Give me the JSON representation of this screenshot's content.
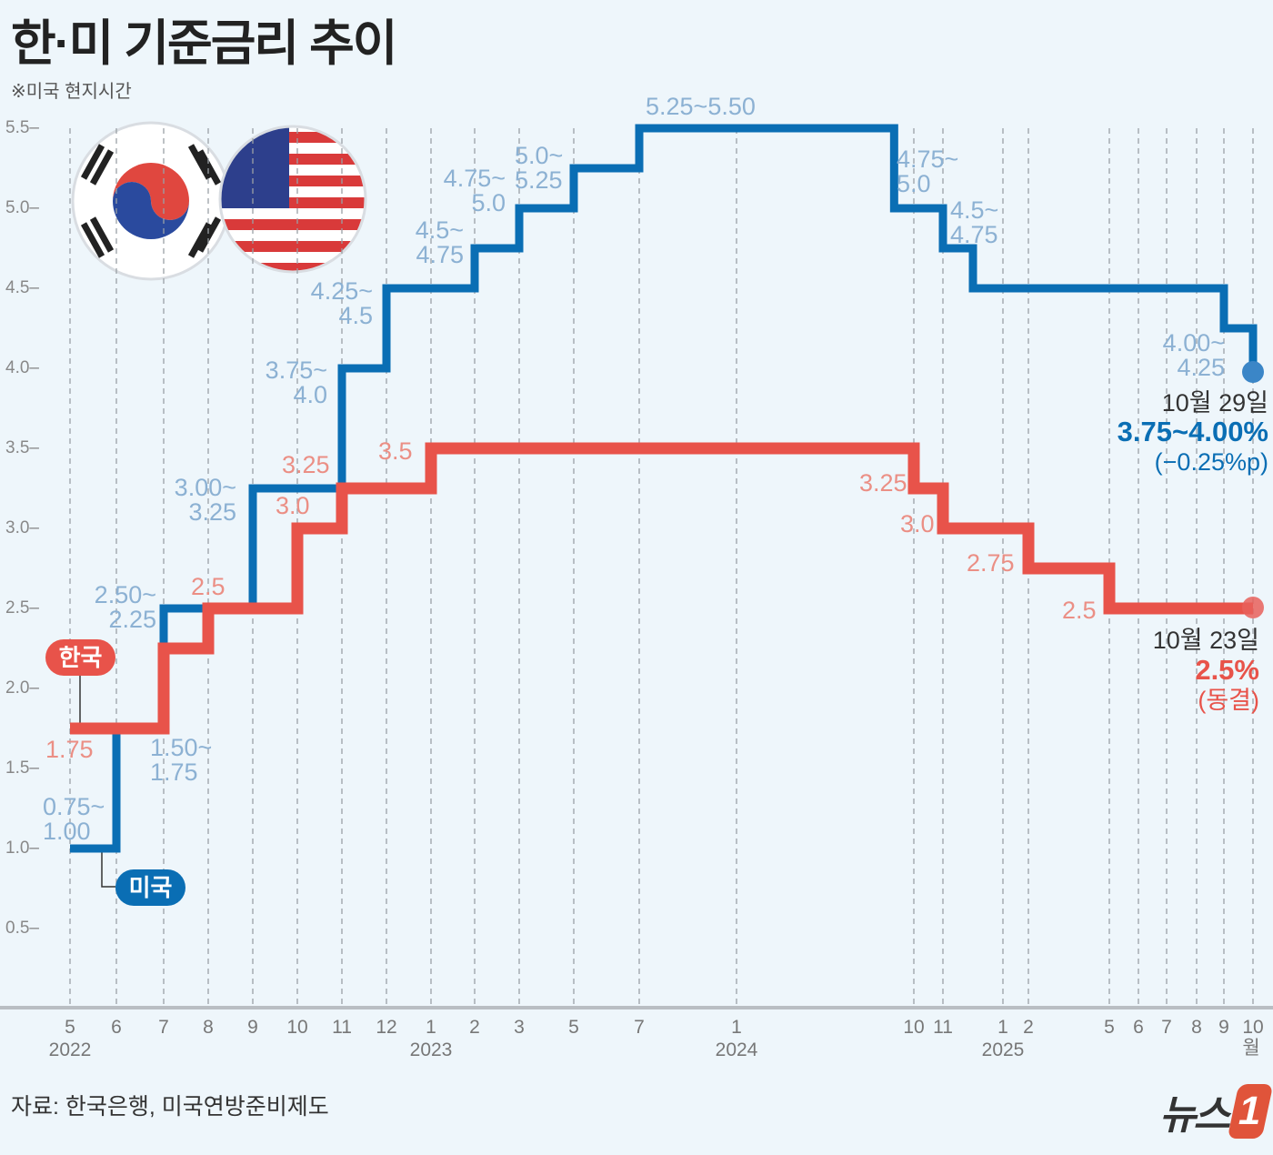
{
  "title": "한·미 기준금리 추이",
  "subtitle": "※미국 현지시간",
  "source": "자료: 한국은행, 미국연방준비제도",
  "logo_text": "뉴스1",
  "colors": {
    "us": "#0a6eb4",
    "korea": "#e8534a",
    "background": "#eef6fb"
  },
  "chart_data": {
    "type": "line",
    "step": true,
    "ylim": [
      0.5,
      5.5
    ],
    "yticks": [
      "5.5",
      "5.0",
      "4.5",
      "4.0",
      "3.5",
      "3.0",
      "2.5",
      "2.0",
      "1.5",
      "1.0",
      "0.5"
    ],
    "xticks": [
      {
        "label": "5",
        "date": "2022-05",
        "year": "2022"
      },
      {
        "label": "6",
        "date": "2022-06"
      },
      {
        "label": "7",
        "date": "2022-07"
      },
      {
        "label": "8",
        "date": "2022-08"
      },
      {
        "label": "9",
        "date": "2022-09"
      },
      {
        "label": "10",
        "date": "2022-10"
      },
      {
        "label": "11",
        "date": "2022-11"
      },
      {
        "label": "12",
        "date": "2022-12"
      },
      {
        "label": "1",
        "date": "2023-01",
        "year": "2023"
      },
      {
        "label": "2",
        "date": "2023-02"
      },
      {
        "label": "3",
        "date": "2023-03"
      },
      {
        "label": "5",
        "date": "2023-05"
      },
      {
        "label": "7",
        "date": "2023-07"
      },
      {
        "label": "1",
        "date": "2024-01",
        "year": "2024"
      },
      {
        "label": "10",
        "date": "2024-10"
      },
      {
        "label": "11",
        "date": "2024-11"
      },
      {
        "label": "1",
        "date": "2025-01",
        "year": "2025"
      },
      {
        "label": "2",
        "date": "2025-02"
      },
      {
        "label": "5",
        "date": "2025-05"
      },
      {
        "label": "6",
        "date": "2025-06"
      },
      {
        "label": "7",
        "date": "2025-07"
      },
      {
        "label": "8",
        "date": "2025-08"
      },
      {
        "label": "9",
        "date": "2025-09"
      },
      {
        "label": "10월",
        "date": "2025-10"
      }
    ],
    "series": [
      {
        "name": "미국",
        "color": "#0a6eb4",
        "points": [
          {
            "date": "2022-05",
            "value": 1.0,
            "label": "0.75~\n1.00"
          },
          {
            "date": "2022-06",
            "value": 1.75,
            "label": "1.50~\n1.75"
          },
          {
            "date": "2022-07",
            "value": 2.5,
            "label": "2.50~\n2.25"
          },
          {
            "date": "2022-09",
            "value": 3.25,
            "label": "3.00~\n3.25"
          },
          {
            "date": "2022-11",
            "value": 4.0,
            "label": "3.75~\n4.0"
          },
          {
            "date": "2022-12",
            "value": 4.5,
            "label": "4.25~\n4.5"
          },
          {
            "date": "2023-02",
            "value": 4.75,
            "label": "4.5~\n4.75"
          },
          {
            "date": "2023-03",
            "value": 5.0,
            "label": "4.75~\n5.0"
          },
          {
            "date": "2023-05",
            "value": 5.25,
            "label": "5.0~\n5.25"
          },
          {
            "date": "2023-07",
            "value": 5.5,
            "label": "5.25~5.50"
          },
          {
            "date": "2024-09",
            "value": 5.0,
            "label": "4.75~\n5.0"
          },
          {
            "date": "2024-11",
            "value": 4.75,
            "label": "4.5~\n4.75"
          },
          {
            "date": "2024-12",
            "value": 4.5,
            "label": ""
          },
          {
            "date": "2025-09",
            "value": 4.25,
            "label": "4.00~\n4.25"
          },
          {
            "date": "2025-10",
            "value": 4.0,
            "label": ""
          }
        ]
      },
      {
        "name": "한국",
        "color": "#e8534a",
        "points": [
          {
            "date": "2022-05",
            "value": 1.75,
            "label": "1.75"
          },
          {
            "date": "2022-07",
            "value": 2.25,
            "label": ""
          },
          {
            "date": "2022-08",
            "value": 2.5,
            "label": "2.5"
          },
          {
            "date": "2022-10",
            "value": 3.0,
            "label": "3.0"
          },
          {
            "date": "2022-11",
            "value": 3.25,
            "label": "3.25"
          },
          {
            "date": "2023-01",
            "value": 3.5,
            "label": "3.5"
          },
          {
            "date": "2024-10",
            "value": 3.25,
            "label": "3.25"
          },
          {
            "date": "2024-11",
            "value": 3.0,
            "label": "3.0"
          },
          {
            "date": "2025-02",
            "value": 2.75,
            "label": "2.75"
          },
          {
            "date": "2025-05",
            "value": 2.5,
            "label": "2.5"
          },
          {
            "date": "2025-10",
            "value": 2.5,
            "label": ""
          }
        ]
      }
    ],
    "annotations": {
      "us": {
        "date": "10월 29일",
        "rate": "3.75~4.00%",
        "change": "(−0.25%p)"
      },
      "korea": {
        "date": "10월 23일",
        "rate": "2.5%",
        "change": "(동결)"
      }
    }
  }
}
